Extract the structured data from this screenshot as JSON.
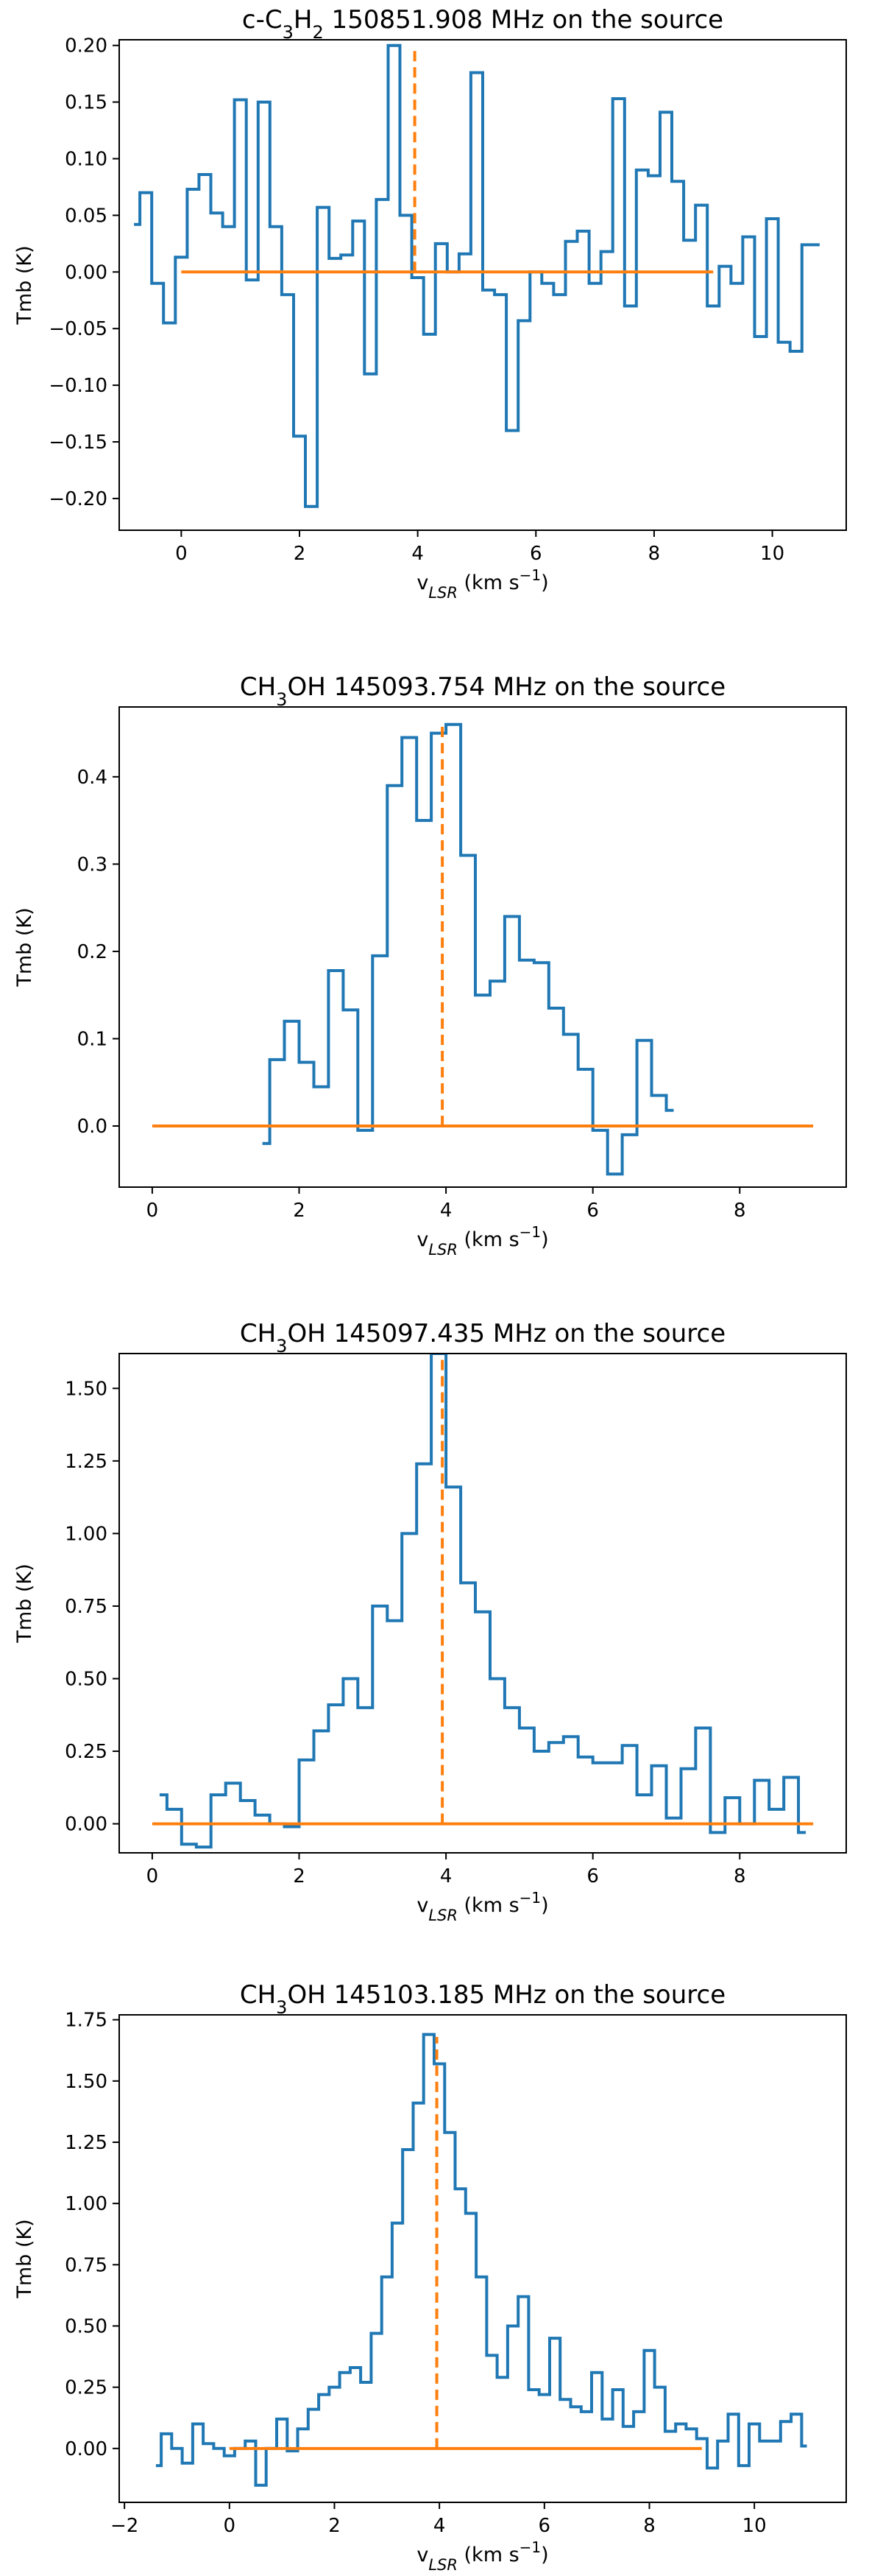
{
  "chart_data": [
    {
      "type": "line",
      "drawstyle": "steps",
      "title_parts": [
        "c-C",
        "3",
        "H",
        "2",
        " 150851.908 MHz on the source"
      ],
      "xlabel_parts": [
        "v",
        "LSR",
        " (km s",
        "−1",
        ")"
      ],
      "ylabel": "Tmb (K)",
      "xlim": [
        -1.05,
        11.25
      ],
      "ylim": [
        -0.228,
        0.205
      ],
      "xticks": [
        0,
        2,
        4,
        6,
        8,
        10
      ],
      "xtick_labels": [
        "0",
        "2",
        "4",
        "6",
        "8",
        "10"
      ],
      "yticks": [
        -0.2,
        -0.15,
        -0.1,
        -0.05,
        0.0,
        0.05,
        0.1,
        0.15,
        0.2
      ],
      "ytick_labels": [
        "−0.20",
        "−0.15",
        "−0.10",
        "−0.05",
        "0.00",
        "0.05",
        "0.10",
        "0.15",
        "0.20"
      ],
      "series": [
        {
          "name": "spectrum",
          "x": [
            -0.8,
            -0.6,
            -0.4,
            -0.2,
            0.0,
            0.2,
            0.4,
            0.6,
            0.8,
            1.0,
            1.2,
            1.4,
            1.6,
            1.8,
            2.0,
            2.2,
            2.4,
            2.6,
            2.8,
            3.0,
            3.2,
            3.4,
            3.6,
            3.8,
            4.0,
            4.2,
            4.4,
            4.6,
            4.8,
            5.0,
            5.2,
            5.4,
            5.6,
            5.8,
            6.0,
            6.2,
            6.4,
            6.6,
            6.8,
            7.0,
            7.2,
            7.4,
            7.6,
            7.8,
            8.0,
            8.2,
            8.4,
            8.6,
            8.8,
            9.0,
            9.2,
            9.4,
            9.6,
            9.8,
            10.0,
            10.2,
            10.4,
            10.6,
            10.8
          ],
          "y": [
            0.042,
            0.07,
            -0.01,
            -0.045,
            0.013,
            0.073,
            0.086,
            0.052,
            0.04,
            0.152,
            -0.007,
            0.15,
            0.04,
            -0.02,
            -0.145,
            -0.207,
            0.057,
            0.012,
            0.015,
            0.045,
            -0.09,
            0.064,
            0.2,
            0.05,
            -0.005,
            -0.055,
            0.025,
            0.0,
            0.016,
            0.176,
            -0.016,
            -0.02,
            -0.14,
            -0.043,
            0.0,
            -0.01,
            -0.02,
            0.027,
            0.036,
            -0.01,
            0.018,
            0.153,
            -0.03,
            0.09,
            0.085,
            0.141,
            0.08,
            0.028,
            0.059,
            -0.03,
            0.005,
            -0.01,
            0.031,
            -0.057,
            0.047,
            -0.062,
            -0.07,
            0.024,
            0.024
          ]
        },
        {
          "name": "baseline",
          "x": [
            0,
            9
          ],
          "y": [
            0,
            0
          ]
        }
      ],
      "vline": {
        "x": 3.95,
        "y": [
          0,
          0.2
        ]
      }
    },
    {
      "type": "line",
      "drawstyle": "steps",
      "title_parts": [
        "CH",
        "3",
        "OH 145093.754 MHz on the source"
      ],
      "xlabel_parts": [
        "v",
        "LSR",
        " (km s",
        "−1",
        ")"
      ],
      "ylabel": "Tmb (K)",
      "xlim": [
        -0.45,
        9.45
      ],
      "ylim": [
        -0.07,
        0.48
      ],
      "xticks": [
        0,
        2,
        4,
        6,
        8
      ],
      "xtick_labels": [
        "0",
        "2",
        "4",
        "6",
        "8"
      ],
      "yticks": [
        0.0,
        0.1,
        0.2,
        0.3,
        0.4
      ],
      "ytick_labels": [
        "0.0",
        "0.1",
        "0.2",
        "0.3",
        "0.4"
      ],
      "series": [
        {
          "name": "spectrum",
          "x": [
            1.5,
            1.7,
            1.9,
            2.1,
            2.3,
            2.5,
            2.7,
            2.9,
            3.1,
            3.3,
            3.5,
            3.7,
            3.9,
            4.1,
            4.3,
            4.5,
            4.7,
            4.9,
            5.1,
            5.3,
            5.5,
            5.7,
            5.9,
            6.1,
            6.3,
            6.5,
            6.7,
            6.9,
            7.1
          ],
          "y": [
            -0.02,
            0.076,
            0.12,
            0.073,
            0.045,
            0.178,
            0.133,
            -0.005,
            0.195,
            0.39,
            0.445,
            0.35,
            0.45,
            0.46,
            0.31,
            0.15,
            0.166,
            0.24,
            0.19,
            0.187,
            0.135,
            0.105,
            0.065,
            -0.005,
            -0.055,
            -0.01,
            0.098,
            0.035,
            0.018
          ]
        },
        {
          "name": "baseline",
          "x": [
            0,
            9
          ],
          "y": [
            0,
            0
          ]
        }
      ],
      "vline": {
        "x": 3.95,
        "y": [
          0,
          0.46
        ]
      }
    },
    {
      "type": "line",
      "drawstyle": "steps",
      "title_parts": [
        "CH",
        "3",
        "OH 145097.435 MHz on the source"
      ],
      "xlabel_parts": [
        "v",
        "LSR",
        " (km s",
        "−1",
        ")"
      ],
      "ylabel": "Tmb (K)",
      "xlim": [
        -0.45,
        9.45
      ],
      "ylim": [
        -0.1,
        1.62
      ],
      "xticks": [
        0,
        2,
        4,
        6,
        8
      ],
      "xtick_labels": [
        "0",
        "2",
        "4",
        "6",
        "8"
      ],
      "yticks": [
        0.0,
        0.25,
        0.5,
        0.75,
        1.0,
        1.25,
        1.5
      ],
      "ytick_labels": [
        "0.00",
        "0.25",
        "0.50",
        "0.75",
        "1.00",
        "1.25",
        "1.50"
      ],
      "series": [
        {
          "name": "spectrum",
          "x": [
            0.1,
            0.3,
            0.5,
            0.7,
            0.9,
            1.1,
            1.3,
            1.5,
            1.7,
            1.9,
            2.1,
            2.3,
            2.5,
            2.7,
            2.9,
            3.1,
            3.3,
            3.5,
            3.7,
            3.9,
            4.1,
            4.3,
            4.5,
            4.7,
            4.9,
            5.1,
            5.3,
            5.5,
            5.7,
            5.9,
            6.1,
            6.3,
            6.5,
            6.7,
            6.9,
            7.1,
            7.3,
            7.5,
            7.7,
            7.9,
            8.1,
            8.3,
            8.5,
            8.7,
            8.9
          ],
          "y": [
            0.1,
            0.05,
            -0.07,
            -0.08,
            0.1,
            0.14,
            0.08,
            0.03,
            0.0,
            -0.01,
            0.22,
            0.32,
            0.41,
            0.5,
            0.4,
            0.75,
            0.7,
            1.0,
            1.24,
            1.62,
            1.16,
            0.83,
            0.73,
            0.5,
            0.4,
            0.33,
            0.25,
            0.28,
            0.3,
            0.23,
            0.21,
            0.21,
            0.27,
            0.1,
            0.2,
            0.02,
            0.19,
            0.33,
            -0.03,
            0.09,
            0.0,
            0.15,
            0.05,
            0.16,
            -0.03
          ]
        },
        {
          "name": "baseline",
          "x": [
            0,
            9
          ],
          "y": [
            0,
            0
          ]
        }
      ],
      "vline": {
        "x": 3.95,
        "y": [
          0,
          1.6
        ]
      }
    },
    {
      "type": "line",
      "drawstyle": "steps",
      "title_parts": [
        "CH",
        "3",
        "OH 145103.185 MHz on the source"
      ],
      "xlabel_parts": [
        "v",
        "LSR",
        " (km s",
        "−1",
        ")"
      ],
      "ylabel": "Tmb (K)",
      "xlim": [
        -2.1,
        11.75
      ],
      "ylim": [
        -0.22,
        1.77
      ],
      "xticks": [
        -2,
        0,
        2,
        4,
        6,
        8,
        10
      ],
      "xtick_labels": [
        "−2",
        "0",
        "2",
        "4",
        "6",
        "8",
        "10"
      ],
      "yticks": [
        0.0,
        0.25,
        0.5,
        0.75,
        1.0,
        1.25,
        1.5,
        1.75
      ],
      "ytick_labels": [
        "0.00",
        "0.25",
        "0.50",
        "0.75",
        "1.00",
        "1.25",
        "1.50",
        "1.75"
      ],
      "series": [
        {
          "name": "spectrum",
          "x": [
            -1.4,
            -1.2,
            -1.0,
            -0.8,
            -0.6,
            -0.4,
            -0.2,
            0.0,
            0.2,
            0.4,
            0.6,
            0.8,
            1.0,
            1.2,
            1.4,
            1.6,
            1.8,
            2.0,
            2.2,
            2.4,
            2.6,
            2.8,
            3.0,
            3.2,
            3.4,
            3.6,
            3.8,
            4.0,
            4.2,
            4.4,
            4.6,
            4.8,
            5.0,
            5.2,
            5.4,
            5.6,
            5.8,
            6.0,
            6.2,
            6.4,
            6.6,
            6.8,
            7.0,
            7.2,
            7.4,
            7.6,
            7.8,
            8.0,
            8.2,
            8.4,
            8.6,
            8.8,
            9.0,
            9.2,
            9.4,
            9.6,
            9.8,
            10.0,
            10.2,
            10.4,
            10.6,
            10.8,
            11.0
          ],
          "y": [
            -0.07,
            0.06,
            0.0,
            -0.06,
            0.1,
            0.02,
            0.0,
            -0.03,
            0.0,
            0.03,
            -0.15,
            0.0,
            0.12,
            -0.01,
            0.08,
            0.16,
            0.22,
            0.25,
            0.31,
            0.33,
            0.27,
            0.47,
            0.7,
            0.92,
            1.22,
            1.41,
            1.69,
            1.57,
            1.29,
            1.06,
            0.96,
            0.7,
            0.38,
            0.29,
            0.5,
            0.62,
            0.24,
            0.22,
            0.45,
            0.2,
            0.17,
            0.15,
            0.31,
            0.12,
            0.24,
            0.09,
            0.15,
            0.4,
            0.25,
            0.07,
            0.1,
            0.08,
            0.04,
            -0.08,
            0.03,
            0.14,
            -0.07,
            0.1,
            0.03,
            0.03,
            0.11,
            0.14,
            0.01
          ]
        },
        {
          "name": "baseline",
          "x": [
            0,
            9
          ],
          "y": [
            0,
            0
          ]
        }
      ],
      "vline": {
        "x": 3.95,
        "y": [
          0,
          1.68
        ]
      }
    }
  ]
}
